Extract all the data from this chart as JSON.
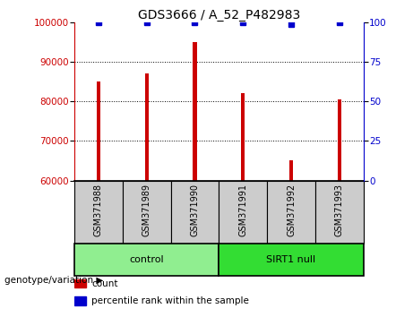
{
  "title": "GDS3666 / A_52_P482983",
  "samples": [
    "GSM371988",
    "GSM371989",
    "GSM371990",
    "GSM371991",
    "GSM371992",
    "GSM371993"
  ],
  "counts": [
    85000,
    87000,
    95000,
    82000,
    65000,
    80500
  ],
  "percentile_ranks": [
    100,
    100,
    100,
    100,
    99,
    100
  ],
  "ylim_left": [
    60000,
    100000
  ],
  "ylim_right": [
    0,
    100
  ],
  "yticks_left": [
    60000,
    70000,
    80000,
    90000,
    100000
  ],
  "yticks_right": [
    0,
    25,
    50,
    75,
    100
  ],
  "bar_color": "#cc0000",
  "dot_color": "#0000cc",
  "bar_width": 0.08,
  "groups": [
    {
      "label": "control",
      "indices": [
        0,
        1,
        2
      ],
      "color": "#90ee90"
    },
    {
      "label": "SIRT1 null",
      "indices": [
        3,
        4,
        5
      ],
      "color": "#33dd33"
    }
  ],
  "group_label": "genotype/variation",
  "legend_count_label": "count",
  "legend_pct_label": "percentile rank within the sample",
  "bg_color": "#ffffff",
  "sample_box_color": "#cccccc",
  "grid_color": "#000000",
  "title_fontsize": 10,
  "tick_fontsize": 7.5,
  "sample_fontsize": 7,
  "group_fontsize": 8,
  "legend_fontsize": 7.5
}
